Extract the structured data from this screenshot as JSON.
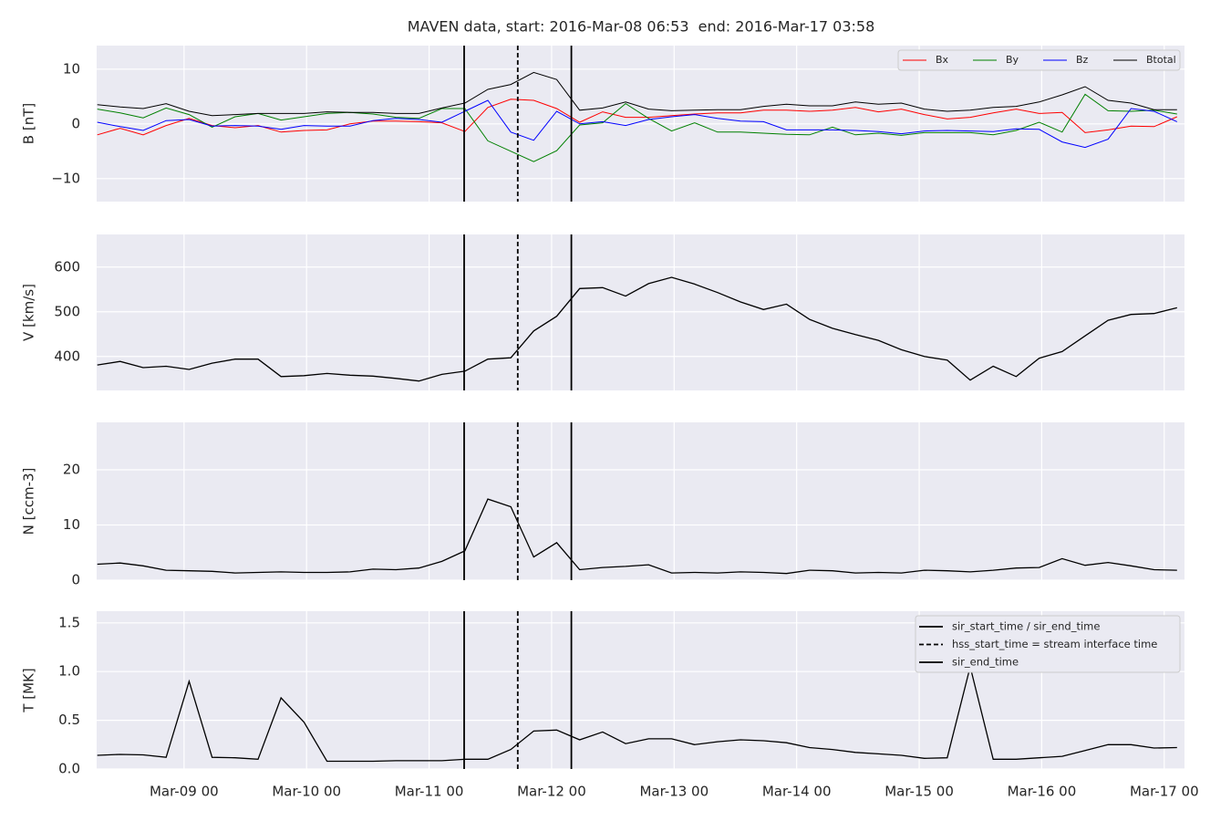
{
  "chart_data": [
    {
      "type": "line",
      "title": "MAVEN data, start: 2016-Mar-08 06:53  end: 2016-Mar-17 03:58",
      "ylabel": "B [nT]",
      "x": [
        "Mar-08 07:00",
        "Mar-08 11:30",
        "Mar-08 16:00",
        "Mar-08 20:30",
        "Mar-09 01:00",
        "Mar-09 05:30",
        "Mar-09 10:00",
        "Mar-09 14:30",
        "Mar-09 19:00",
        "Mar-09 23:30",
        "Mar-10 04:00",
        "Mar-10 08:30",
        "Mar-10 13:00",
        "Mar-10 17:30",
        "Mar-10 22:00",
        "Mar-11 02:30",
        "Mar-11 07:00",
        "Mar-11 11:30",
        "Mar-11 16:00",
        "Mar-11 20:30",
        "Mar-12 01:00",
        "Mar-12 05:30",
        "Mar-12 10:00",
        "Mar-12 14:30",
        "Mar-12 19:00",
        "Mar-12 23:30",
        "Mar-13 04:00",
        "Mar-13 08:30",
        "Mar-13 13:00",
        "Mar-13 17:30",
        "Mar-13 22:00",
        "Mar-14 02:30",
        "Mar-14 07:00",
        "Mar-14 11:30",
        "Mar-14 16:00",
        "Mar-14 20:30",
        "Mar-15 01:00",
        "Mar-15 05:30",
        "Mar-15 10:00",
        "Mar-15 14:30",
        "Mar-15 19:00",
        "Mar-15 23:30",
        "Mar-16 04:00",
        "Mar-16 08:30",
        "Mar-16 13:00",
        "Mar-16 17:30",
        "Mar-16 22:00",
        "Mar-17 02:30"
      ],
      "series": [
        {
          "name": "Bx",
          "color": "#ff0000",
          "values": [
            -2.0,
            -0.8,
            -2.0,
            -0.3,
            1.0,
            -0.3,
            -0.7,
            -0.3,
            -1.5,
            -1.2,
            -1.1,
            0.0,
            0.5,
            0.5,
            0.4,
            0.2,
            -1.4,
            3.0,
            4.5,
            4.3,
            2.8,
            0.3,
            2.2,
            1.2,
            1.2,
            1.5,
            1.8,
            2.0,
            2.0,
            2.5,
            2.5,
            2.3,
            2.5,
            3.0,
            2.2,
            2.7,
            1.7,
            0.9,
            1.2,
            2.0,
            2.7,
            1.9,
            2.1,
            -1.6,
            -1.1,
            -0.4,
            -0.5,
            1.3
          ]
        },
        {
          "name": "By",
          "color": "#008000",
          "values": [
            2.7,
            2.0,
            1.1,
            2.9,
            1.7,
            -0.6,
            1.3,
            1.9,
            0.7,
            1.3,
            1.9,
            2.1,
            1.8,
            1.2,
            1.0,
            2.8,
            2.8,
            -3.1,
            -5.0,
            -6.9,
            -4.9,
            -0.2,
            0.2,
            3.7,
            1.0,
            -1.3,
            0.2,
            -1.5,
            -1.5,
            -1.7,
            -1.9,
            -2.0,
            -0.6,
            -2.0,
            -1.7,
            -2.1,
            -1.6,
            -1.6,
            -1.6,
            -2.0,
            -1.2,
            0.3,
            -1.5,
            5.4,
            2.4,
            2.3,
            2.5,
            1.8
          ]
        },
        {
          "name": "Bz",
          "color": "#0000ff",
          "values": [
            0.3,
            -0.5,
            -1.2,
            0.6,
            0.8,
            -0.4,
            -0.3,
            -0.4,
            -1.0,
            -0.3,
            -0.4,
            -0.4,
            0.6,
            1.0,
            0.8,
            0.3,
            2.3,
            4.3,
            -1.5,
            -3.0,
            2.3,
            0.0,
            0.4,
            -0.3,
            0.8,
            1.3,
            1.7,
            1.0,
            0.5,
            0.4,
            -1.1,
            -1.1,
            -1.1,
            -1.2,
            -1.4,
            -1.8,
            -1.3,
            -1.2,
            -1.3,
            -1.4,
            -0.9,
            -1.0,
            -3.3,
            -4.3,
            -2.8,
            2.8,
            2.3,
            0.4
          ]
        },
        {
          "name": "Btotal",
          "color": "#000000",
          "values": [
            3.5,
            3.1,
            2.8,
            3.7,
            2.3,
            1.5,
            1.7,
            1.9,
            1.9,
            1.9,
            2.2,
            2.1,
            2.1,
            1.9,
            1.9,
            2.9,
            3.8,
            6.3,
            7.2,
            9.4,
            8.1,
            2.5,
            2.9,
            4.0,
            2.7,
            2.4,
            2.5,
            2.6,
            2.6,
            3.2,
            3.6,
            3.3,
            3.3,
            4.0,
            3.6,
            3.8,
            2.7,
            2.3,
            2.5,
            3.0,
            3.2,
            4.0,
            5.3,
            6.8,
            4.3,
            3.8,
            2.6,
            2.6
          ]
        }
      ],
      "ylim": [
        -14.2,
        14.3
      ],
      "yticks": [
        {
          "value": -10,
          "label": "−10"
        },
        0,
        10
      ],
      "grid": true,
      "legend": "upper right"
    },
    {
      "type": "line",
      "ylabel": "V [km/s]",
      "x": [
        "Mar-08 07:00",
        "Mar-08 11:30",
        "Mar-08 16:00",
        "Mar-08 20:30",
        "Mar-09 01:00",
        "Mar-09 05:30",
        "Mar-09 10:00",
        "Mar-09 14:30",
        "Mar-09 19:00",
        "Mar-09 23:30",
        "Mar-10 04:00",
        "Mar-10 08:30",
        "Mar-10 13:00",
        "Mar-10 17:30",
        "Mar-10 22:00",
        "Mar-11 02:30",
        "Mar-11 07:00",
        "Mar-11 11:30",
        "Mar-11 16:00",
        "Mar-11 20:30",
        "Mar-12 01:00",
        "Mar-12 05:30",
        "Mar-12 10:00",
        "Mar-12 14:30",
        "Mar-12 19:00",
        "Mar-12 23:30",
        "Mar-13 04:00",
        "Mar-13 08:30",
        "Mar-13 13:00",
        "Mar-13 17:30",
        "Mar-13 22:00",
        "Mar-14 02:30",
        "Mar-14 07:00",
        "Mar-14 11:30",
        "Mar-14 16:00",
        "Mar-14 20:30",
        "Mar-15 01:00",
        "Mar-15 05:30",
        "Mar-15 10:00",
        "Mar-15 14:30",
        "Mar-15 19:00",
        "Mar-15 23:30",
        "Mar-16 04:00",
        "Mar-16 08:30",
        "Mar-16 13:00",
        "Mar-16 17:30",
        "Mar-16 22:00",
        "Mar-17 02:30"
      ],
      "values": [
        381,
        389,
        375,
        378,
        371,
        385,
        394,
        394,
        355,
        357,
        362,
        358,
        356,
        351,
        345,
        360,
        367,
        394,
        397,
        457,
        490,
        552,
        554,
        535,
        563,
        577,
        562,
        543,
        522,
        505,
        517,
        483,
        463,
        449,
        436,
        415,
        400,
        392,
        347,
        378,
        355,
        396,
        411,
        446,
        481,
        494,
        496,
        509
      ],
      "color": "#000000",
      "ylim": [
        324,
        673
      ],
      "yticks": [
        400,
        500,
        600
      ],
      "grid": true
    },
    {
      "type": "line",
      "ylabel": "N [ccm-3]",
      "x": [
        "Mar-08 07:00",
        "Mar-08 11:30",
        "Mar-08 16:00",
        "Mar-08 20:30",
        "Mar-09 01:00",
        "Mar-09 05:30",
        "Mar-09 10:00",
        "Mar-09 14:30",
        "Mar-09 19:00",
        "Mar-09 23:30",
        "Mar-10 04:00",
        "Mar-10 08:30",
        "Mar-10 13:00",
        "Mar-10 17:30",
        "Mar-10 22:00",
        "Mar-11 02:30",
        "Mar-11 07:00",
        "Mar-11 11:30",
        "Mar-11 16:00",
        "Mar-11 20:30",
        "Mar-12 01:00",
        "Mar-12 05:30",
        "Mar-12 10:00",
        "Mar-12 14:30",
        "Mar-12 19:00",
        "Mar-12 23:30",
        "Mar-13 04:00",
        "Mar-13 08:30",
        "Mar-13 13:00",
        "Mar-13 17:30",
        "Mar-13 22:00",
        "Mar-14 02:30",
        "Mar-14 07:00",
        "Mar-14 11:30",
        "Mar-14 16:00",
        "Mar-14 20:30",
        "Mar-15 01:00",
        "Mar-15 05:30",
        "Mar-15 10:00",
        "Mar-15 14:30",
        "Mar-15 19:00",
        "Mar-15 23:30",
        "Mar-16 04:00",
        "Mar-16 08:30",
        "Mar-16 13:00",
        "Mar-16 17:30",
        "Mar-16 22:00",
        "Mar-17 02:30"
      ],
      "values": [
        2.9,
        3.1,
        2.6,
        1.8,
        1.7,
        1.6,
        1.3,
        1.4,
        1.5,
        1.4,
        1.4,
        1.5,
        2.0,
        1.9,
        2.2,
        3.4,
        5.3,
        14.7,
        13.3,
        4.2,
        6.8,
        1.9,
        2.3,
        2.5,
        2.8,
        1.3,
        1.4,
        1.3,
        1.5,
        1.4,
        1.2,
        1.8,
        1.7,
        1.3,
        1.4,
        1.3,
        1.8,
        1.7,
        1.5,
        1.8,
        2.2,
        2.3,
        3.9,
        2.7,
        3.2,
        2.6,
        1.9,
        1.8
      ],
      "color": "#000000",
      "ylim": [
        0,
        28.6
      ],
      "yticks": [
        0,
        10,
        20
      ],
      "grid": true
    },
    {
      "type": "line",
      "ylabel": "T [MK]",
      "x": [
        "Mar-08 07:00",
        "Mar-08 11:30",
        "Mar-08 16:00",
        "Mar-08 20:30",
        "Mar-09 01:00",
        "Mar-09 05:30",
        "Mar-09 10:00",
        "Mar-09 14:30",
        "Mar-09 19:00",
        "Mar-09 23:30",
        "Mar-10 04:00",
        "Mar-10 08:30",
        "Mar-10 13:00",
        "Mar-10 17:30",
        "Mar-10 22:00",
        "Mar-11 02:30",
        "Mar-11 07:00",
        "Mar-11 11:30",
        "Mar-11 16:00",
        "Mar-11 20:30",
        "Mar-12 01:00",
        "Mar-12 05:30",
        "Mar-12 10:00",
        "Mar-12 14:30",
        "Mar-12 19:00",
        "Mar-12 23:30",
        "Mar-13 04:00",
        "Mar-13 08:30",
        "Mar-13 13:00",
        "Mar-13 17:30",
        "Mar-13 22:00",
        "Mar-14 02:30",
        "Mar-14 07:00",
        "Mar-14 11:30",
        "Mar-14 16:00",
        "Mar-14 20:30",
        "Mar-15 01:00",
        "Mar-15 05:30",
        "Mar-15 10:00",
        "Mar-15 14:30",
        "Mar-15 19:00",
        "Mar-15 23:30",
        "Mar-16 04:00",
        "Mar-16 08:30",
        "Mar-16 13:00",
        "Mar-16 17:30",
        "Mar-16 22:00",
        "Mar-17 02:30"
      ],
      "values": [
        0.14,
        0.15,
        0.145,
        0.12,
        0.9,
        0.12,
        0.115,
        0.1,
        0.73,
        0.48,
        0.08,
        0.08,
        0.08,
        0.085,
        0.085,
        0.085,
        0.1,
        0.1,
        0.2,
        0.39,
        0.4,
        0.3,
        0.38,
        0.26,
        0.31,
        0.31,
        0.25,
        0.28,
        0.3,
        0.29,
        0.27,
        0.22,
        0.2,
        0.17,
        0.155,
        0.14,
        0.11,
        0.115,
        1.05,
        0.1,
        0.1,
        0.115,
        0.13,
        0.19,
        0.25,
        0.25,
        0.215,
        0.22
      ],
      "color": "#000000",
      "ylim": [
        0,
        1.62
      ],
      "yticks": [
        {
          "value": 0,
          "label": "0.0"
        },
        0.5,
        {
          "value": 1,
          "label": "1.0"
        },
        1.5
      ],
      "grid": true,
      "xlim": [
        "Mar-08 06:53",
        "Mar-17 03:58"
      ],
      "xticks": [
        {
          "value": "Mar-09 00:00",
          "label": "Mar-09 00"
        },
        {
          "value": "Mar-10 00:00",
          "label": "Mar-10 00"
        },
        {
          "value": "Mar-11 00:00",
          "label": "Mar-11 00"
        },
        {
          "value": "Mar-12 00:00",
          "label": "Mar-12 00"
        },
        {
          "value": "Mar-13 00:00",
          "label": "Mar-13 00"
        },
        {
          "value": "Mar-14 00:00",
          "label": "Mar-14 00"
        },
        {
          "value": "Mar-15 00:00",
          "label": "Mar-15 00"
        },
        {
          "value": "Mar-16 00:00",
          "label": "Mar-16 00"
        },
        {
          "value": "Mar-17 00:00",
          "label": "Mar-17 00"
        }
      ],
      "vlines": [
        {
          "name": "sir_start_time / sir_end_time",
          "x": "Mar-11 06:52",
          "style": "solid"
        },
        {
          "name": "hss_start_time = stream interface time",
          "x": "Mar-11 17:22",
          "style": "dashed"
        },
        {
          "name": "sir_end_time",
          "x": "Mar-12 03:52",
          "style": "solid"
        }
      ],
      "legend": "upper right"
    }
  ]
}
